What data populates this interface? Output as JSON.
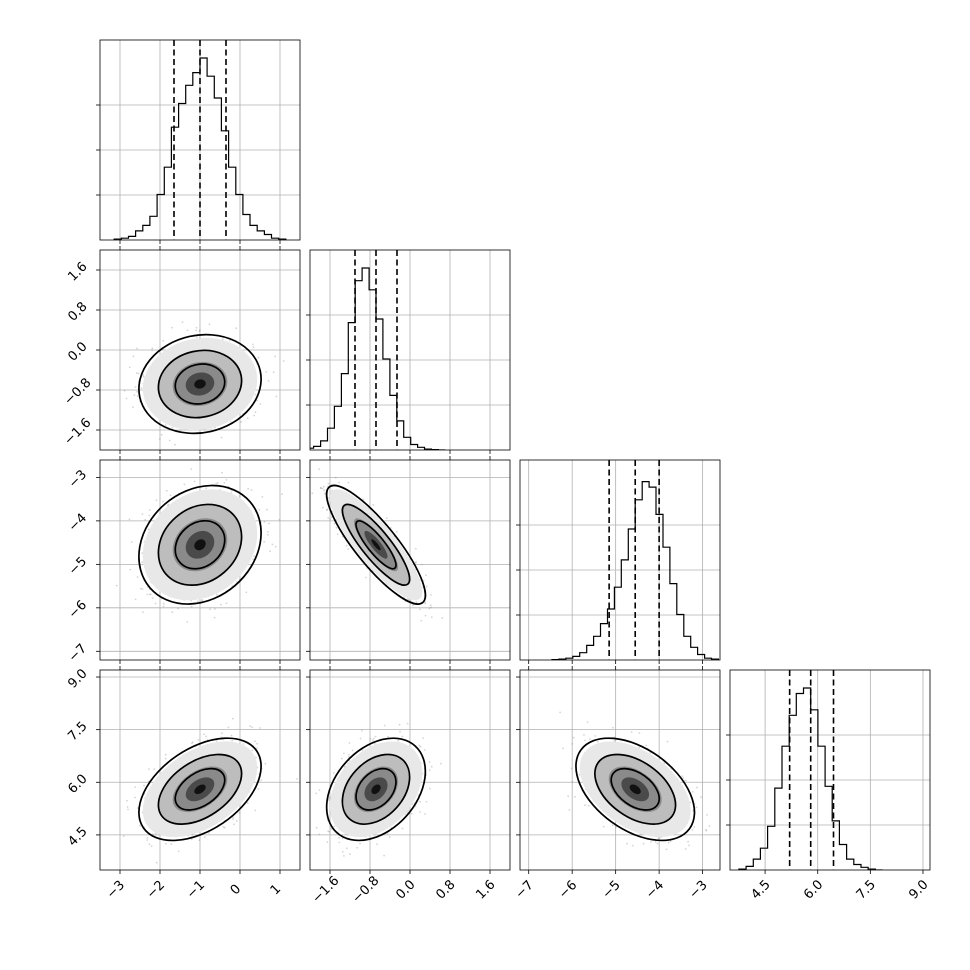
{
  "chart_data": {
    "type": "corner",
    "grid": true,
    "colors": {
      "points": "#888888",
      "lines": "#000000",
      "grid": "#b0b0b0"
    },
    "params": [
      {
        "mean": -1.0,
        "sd": 0.65,
        "range": [
          -3.5,
          1.5
        ],
        "ticks": [
          -3,
          -2,
          -1,
          0,
          1
        ],
        "tick_labels": [
          "−3",
          "−2",
          "−1",
          "0",
          "1"
        ],
        "quantiles": [
          -1.65,
          -1.0,
          -0.35
        ]
      },
      {
        "mean": -0.68,
        "sd": 0.42,
        "range": [
          -2.0,
          2.0
        ],
        "ticks": [
          -1.6,
          -0.8,
          0.0,
          0.8,
          1.6
        ],
        "tick_labels": [
          "−1.6",
          "−0.8",
          "0.0",
          "0.8",
          "1.6"
        ],
        "quantiles": [
          -1.1,
          -0.68,
          -0.26
        ]
      },
      {
        "mean": -4.55,
        "sd": 0.58,
        "range": [
          -7.2,
          -2.6
        ],
        "ticks": [
          -7,
          -6,
          -5,
          -4,
          -3
        ],
        "tick_labels": [
          "−7",
          "−6",
          "−5",
          "−4",
          "−3"
        ],
        "quantiles": [
          -5.15,
          -4.55,
          -4.0
        ]
      },
      {
        "mean": 5.8,
        "sd": 0.62,
        "range": [
          3.5,
          9.2
        ],
        "ticks": [
          4.5,
          6.0,
          7.5,
          9.0
        ],
        "tick_labels": [
          "4.5",
          "6.0",
          "7.5",
          "9.0"
        ],
        "quantiles": [
          5.2,
          5.8,
          6.45
        ]
      }
    ],
    "correlations": [
      [
        1,
        0.1,
        0.2,
        0.45
      ],
      [
        0.1,
        1,
        -0.85,
        0.35
      ],
      [
        0.2,
        -0.85,
        1,
        -0.45
      ],
      [
        0.45,
        0.35,
        -0.45,
        1
      ]
    ],
    "histograms": [
      [
        0.005,
        0.01,
        0.02,
        0.05,
        0.08,
        0.13,
        0.25,
        0.4,
        0.62,
        0.75,
        0.85,
        0.92,
        1.0,
        0.9,
        0.78,
        0.6,
        0.4,
        0.25,
        0.14,
        0.08,
        0.05,
        0.03,
        0.01,
        0.005
      ],
      [
        0.01,
        0.02,
        0.05,
        0.12,
        0.24,
        0.42,
        0.7,
        0.93,
        1.0,
        0.88,
        0.72,
        0.5,
        0.3,
        0.16,
        0.07,
        0.03,
        0.015,
        0.005,
        0.002,
        0.0
      ],
      [
        0.002,
        0.005,
        0.01,
        0.02,
        0.04,
        0.08,
        0.13,
        0.2,
        0.28,
        0.4,
        0.55,
        0.72,
        0.88,
        0.98,
        0.95,
        0.8,
        0.62,
        0.42,
        0.25,
        0.13,
        0.07,
        0.03,
        0.01,
        0.005
      ],
      [
        0.005,
        0.02,
        0.06,
        0.12,
        0.24,
        0.45,
        0.68,
        0.85,
        0.97,
        1.0,
        0.88,
        0.68,
        0.46,
        0.27,
        0.14,
        0.06,
        0.03,
        0.015,
        0.005,
        0.0
      ]
    ]
  }
}
